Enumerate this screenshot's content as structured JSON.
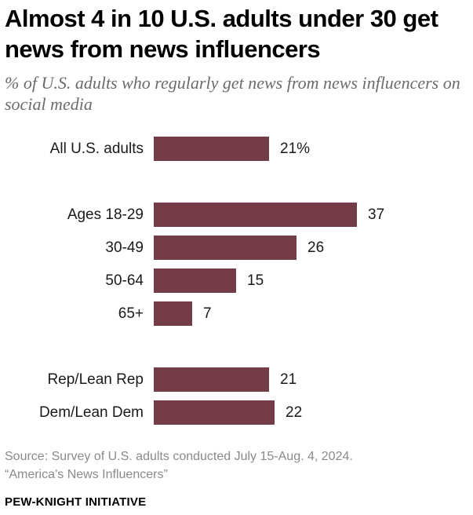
{
  "title": "Almost 4 in 10 U.S. adults under 30 get news from news influencers",
  "subtitle": "% of U.S. adults who regularly get news from news influencers on social media",
  "chart_data": {
    "type": "bar",
    "orientation": "horizontal",
    "categories": [
      "All U.S. adults",
      "Ages 18-29",
      "30-49",
      "50-64",
      "65+",
      "Rep/Lean Rep",
      "Dem/Lean Dem"
    ],
    "values": [
      21,
      37,
      26,
      15,
      7,
      21,
      22
    ],
    "value_labels": [
      "21%",
      "37",
      "26",
      "15",
      "7",
      "21",
      "22"
    ],
    "groups": [
      [
        "All U.S. adults"
      ],
      [
        "Ages 18-29",
        "30-49",
        "50-64",
        "65+"
      ],
      [
        "Rep/Lean Rep",
        "Dem/Lean Dem"
      ]
    ],
    "bar_color": "#733c46",
    "xlim": [
      0,
      40
    ],
    "grid": false,
    "legend": "none"
  },
  "source_lines": [
    "Source: Survey of U.S. adults conducted July 15-Aug. 4, 2024.",
    "“America’s News Influencers”"
  ],
  "brand": "PEW-KNIGHT INITIATIVE"
}
